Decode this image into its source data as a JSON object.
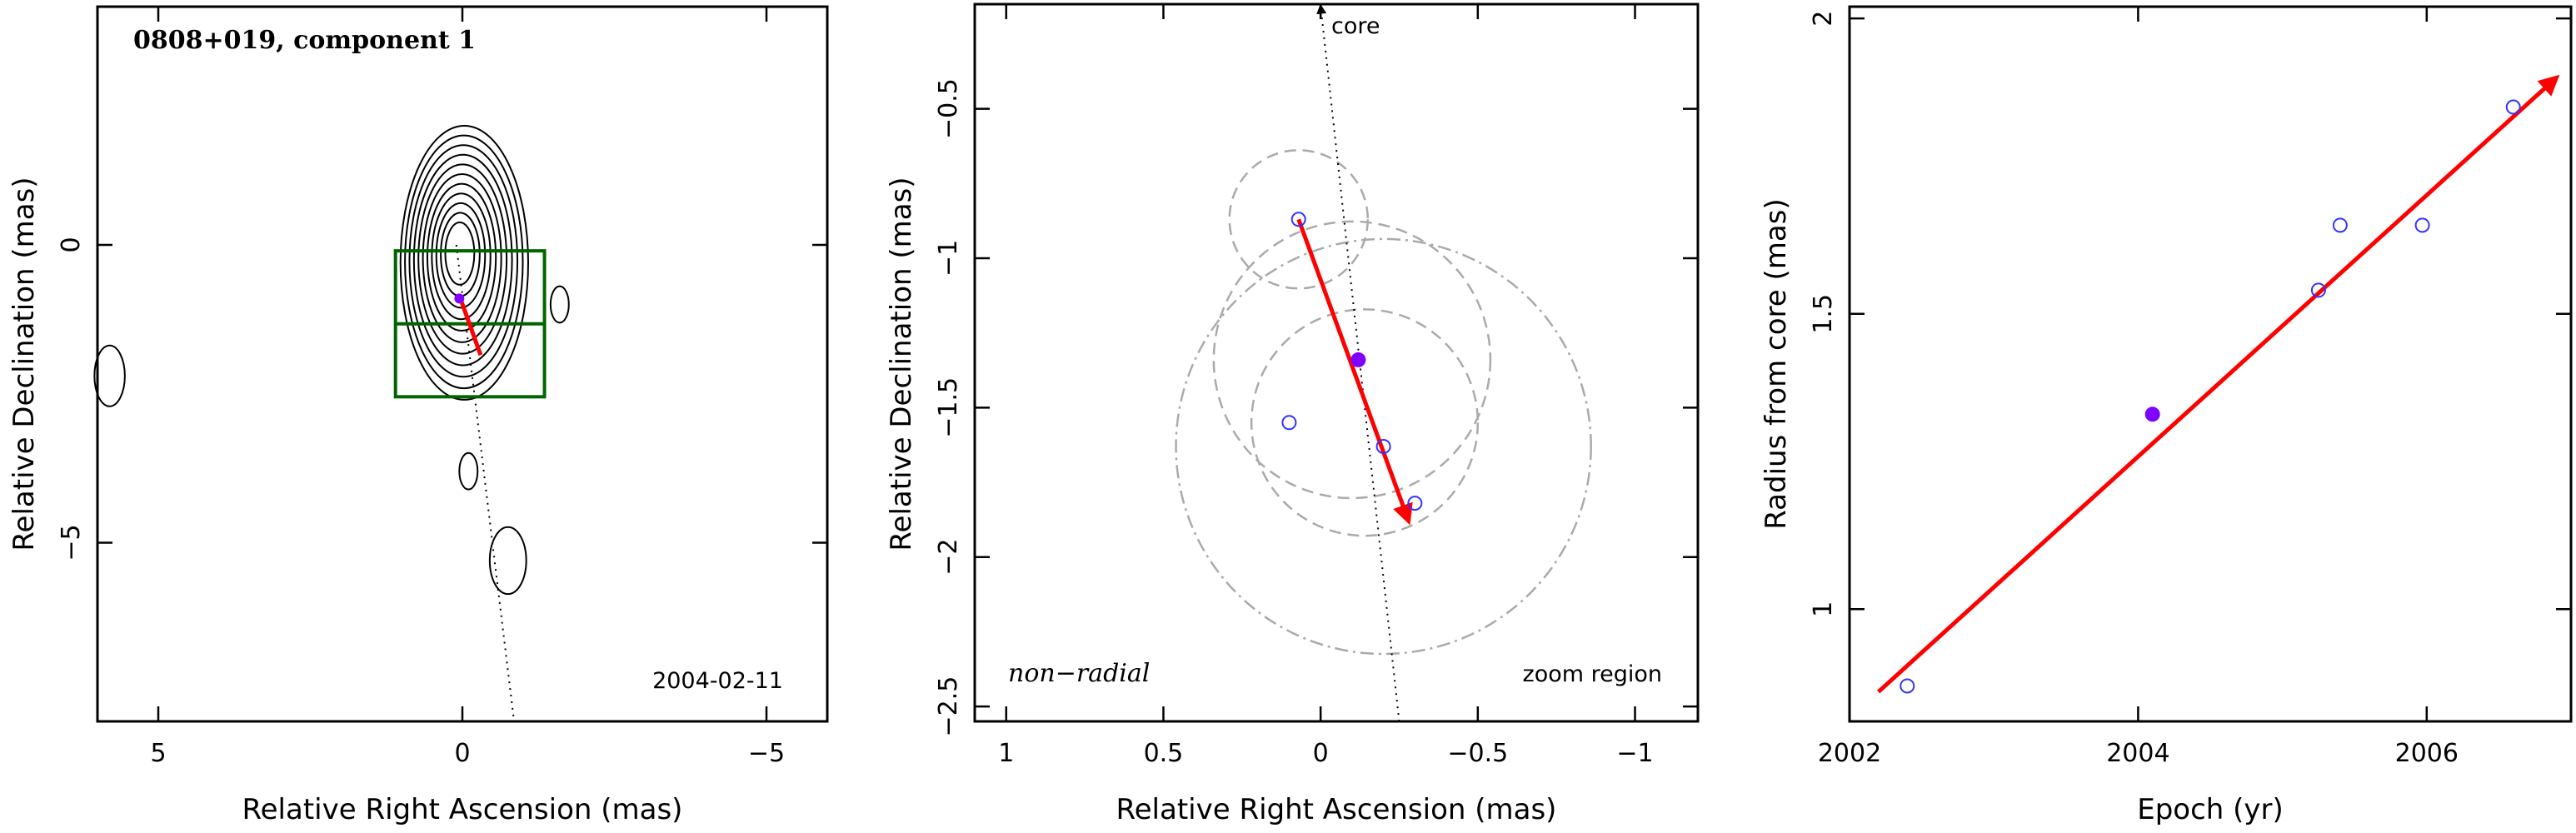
{
  "chart_data": [
    {
      "type": "contour_map",
      "title": "0808+019, component 1",
      "annotation": "2004-02-11",
      "xlabel": "Relative Right Ascension (mas)",
      "ylabel": "Relative Declination (mas)",
      "xlim": [
        6,
        -6
      ],
      "ylim": [
        -8,
        4
      ],
      "xticks": [
        {
          "v": 5,
          "label": "5"
        },
        {
          "v": 0,
          "label": "0"
        },
        {
          "v": -5,
          "label": "−5"
        }
      ],
      "yticks": [
        {
          "v": 0,
          "label": "0"
        },
        {
          "v": -5,
          "label": "−5"
        }
      ],
      "contours": {
        "center": [
          0.05,
          -0.5
        ],
        "levels": 11,
        "ra_range": [
          -1.2,
          0.9
        ],
        "dec_range": [
          -2.6,
          2.0
        ]
      },
      "side_blobs": [
        {
          "center": [
            5.8,
            -2.2
          ],
          "rx": 0.25,
          "ry": 0.5
        },
        {
          "center": [
            -1.6,
            -1.0
          ],
          "rx": 0.15,
          "ry": 0.3
        },
        {
          "center": [
            -0.1,
            -3.8
          ],
          "rx": 0.15,
          "ry": 0.3
        },
        {
          "center": [
            -0.75,
            -5.3
          ],
          "rx": 0.3,
          "ry": 0.55
        }
      ],
      "zoom_box": {
        "ra": [
          1.1,
          -1.35
        ],
        "dec": [
          -2.55,
          -0.1
        ]
      },
      "ridge_line": {
        "from": [
          0.1,
          0.0
        ],
        "to": [
          -0.85,
          -8.0
        ]
      },
      "motion_vector": {
        "from": [
          0.05,
          -0.85
        ],
        "to": [
          -0.3,
          -1.85
        ],
        "color": "#ff0000"
      },
      "point": {
        "ra": 0.05,
        "dec": -0.9,
        "color": "#7f00ff"
      }
    },
    {
      "type": "scatter",
      "xlabel": "Relative Right Ascension (mas)",
      "ylabel": "Relative Declination (mas)",
      "xlim": [
        1.1,
        -1.2
      ],
      "ylim": [
        -2.55,
        -0.15
      ],
      "xticks": [
        {
          "v": 1,
          "label": "1"
        },
        {
          "v": 0.5,
          "label": "0.5"
        },
        {
          "v": 0,
          "label": "0"
        },
        {
          "v": -0.5,
          "label": "−0.5"
        },
        {
          "v": -1,
          "label": "−1"
        }
      ],
      "yticks": [
        {
          "v": -0.5,
          "label": "−0.5"
        },
        {
          "v": -1,
          "label": "−1"
        },
        {
          "v": -1.5,
          "label": "−1.5"
        },
        {
          "v": -2,
          "label": "−2"
        },
        {
          "v": -2.5,
          "label": "−2.5"
        }
      ],
      "labels": {
        "left": "non−radial",
        "right": "zoom region",
        "core": "core"
      },
      "points_open": [
        [
          0.07,
          -0.87
        ],
        [
          0.1,
          -1.55
        ],
        [
          -0.2,
          -1.63
        ],
        [
          -0.3,
          -1.82
        ]
      ],
      "point_filled": [
        -0.12,
        -1.34
      ],
      "circles": [
        {
          "cx": 0.07,
          "cy": -0.87,
          "r": 0.22,
          "style": "dashed"
        },
        {
          "cx": -0.1,
          "cy": -1.34,
          "r": 0.44,
          "style": "dashed"
        },
        {
          "cx": -0.14,
          "cy": -1.55,
          "r": 0.36,
          "style": "dashed"
        },
        {
          "cx": -0.2,
          "cy": -1.63,
          "r": 0.66,
          "style": "dashdot"
        }
      ],
      "ridge_line": {
        "from": [
          0.0,
          -0.15
        ],
        "to": [
          -0.25,
          -2.55
        ]
      },
      "motion_vector": {
        "from": [
          0.07,
          -0.87
        ],
        "to": [
          -0.28,
          -1.88
        ],
        "color": "#ff0000"
      }
    },
    {
      "type": "scatter",
      "xlabel": "Epoch (yr)",
      "ylabel": "Radius from core (mas)",
      "xlim": [
        2002,
        2007
      ],
      "ylim": [
        0.81,
        2.02
      ],
      "xticks": [
        {
          "v": 2002,
          "label": "2002"
        },
        {
          "v": 2004,
          "label": "2004"
        },
        {
          "v": 2006,
          "label": "2006"
        }
      ],
      "yticks": [
        {
          "v": 1,
          "label": "1"
        },
        {
          "v": 1.5,
          "label": "1.5"
        },
        {
          "v": 2,
          "label": "2"
        }
      ],
      "points_open": [
        [
          2002.4,
          0.87
        ],
        [
          2005.25,
          1.54
        ],
        [
          2005.4,
          1.65
        ],
        [
          2005.97,
          1.65
        ],
        [
          2006.6,
          1.85
        ]
      ],
      "point_filled": [
        2004.1,
        1.33
      ],
      "fit_line": {
        "from": [
          2002.2,
          0.86
        ],
        "to": [
          2006.9,
          1.9
        ],
        "color": "#ff0000"
      }
    }
  ]
}
